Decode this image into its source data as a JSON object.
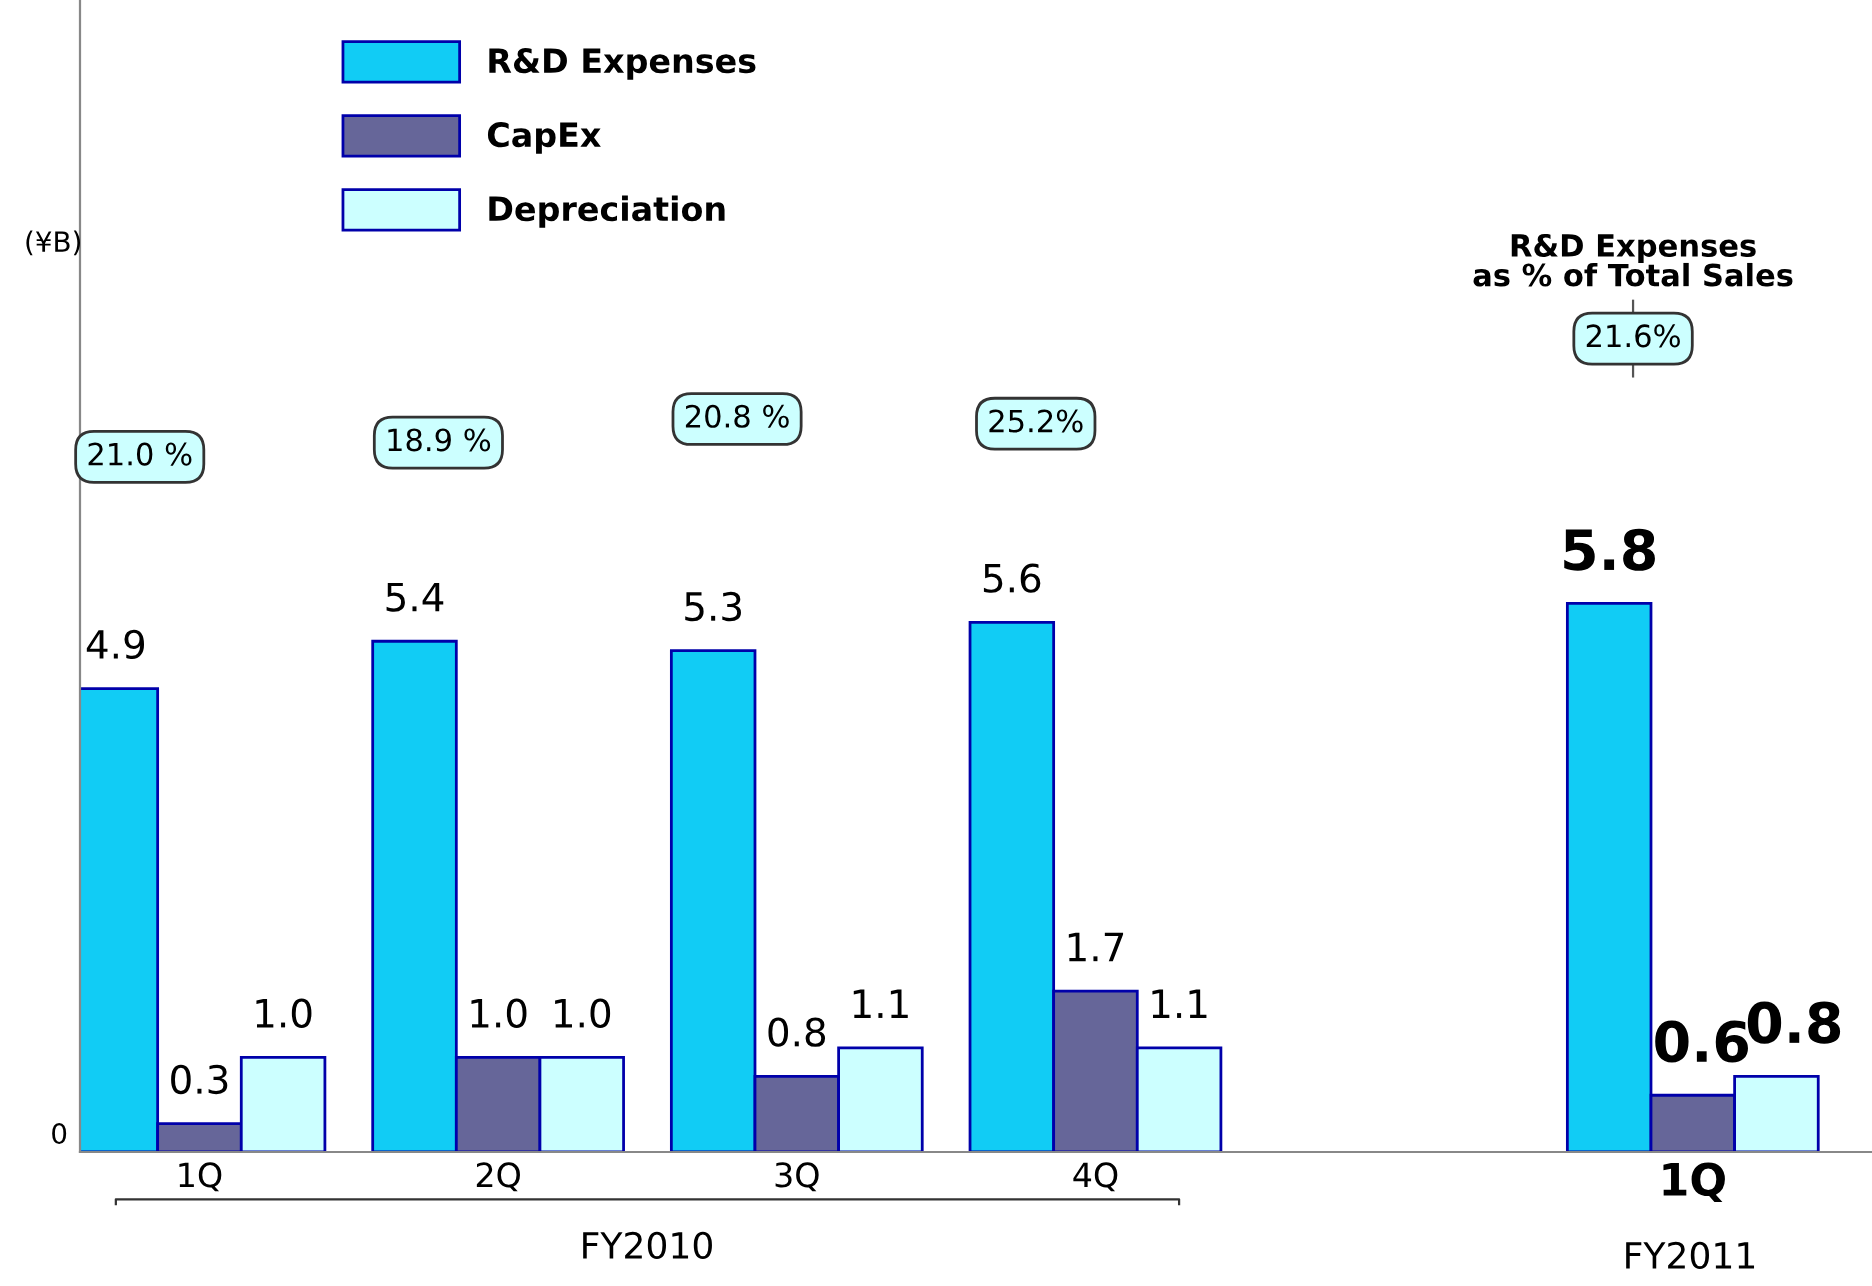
{
  "chart_data": {
    "type": "bar",
    "categories": [
      "1Q",
      "2Q",
      "3Q",
      "4Q",
      null,
      "1Q"
    ],
    "series": [
      {
        "name": "R&D Expenses",
        "color": "#11ccf5",
        "values": [
          4.9,
          5.4,
          5.3,
          5.6,
          null,
          5.8
        ],
        "value_labels": [
          "4.9",
          "5.4",
          "5.3",
          "5.6",
          null,
          "5.8"
        ]
      },
      {
        "name": "CapEx",
        "color": "#666699",
        "values": [
          0.3,
          1.0,
          0.8,
          1.7,
          null,
          0.6
        ],
        "value_labels": [
          "0.3",
          "1.0",
          "0.8",
          "1.7",
          null,
          "0.6"
        ]
      },
      {
        "name": "Depreciation",
        "color": "#ccffff",
        "values": [
          1.0,
          1.0,
          1.1,
          1.1,
          null,
          0.8
        ],
        "value_labels": [
          "1.0",
          "1.0",
          "1.1",
          "1.1",
          null,
          "0.8"
        ]
      }
    ],
    "legend": "top left",
    "annotations": [
      "21.0 %",
      "18.9 %",
      "20.8 %",
      "25.2%",
      null,
      "21.6%",
      "R&D Expenses\nas % of Total Sales",
      "FY2010",
      "FY2011",
      "0",
      "(¥B)"
    ]
  }
}
